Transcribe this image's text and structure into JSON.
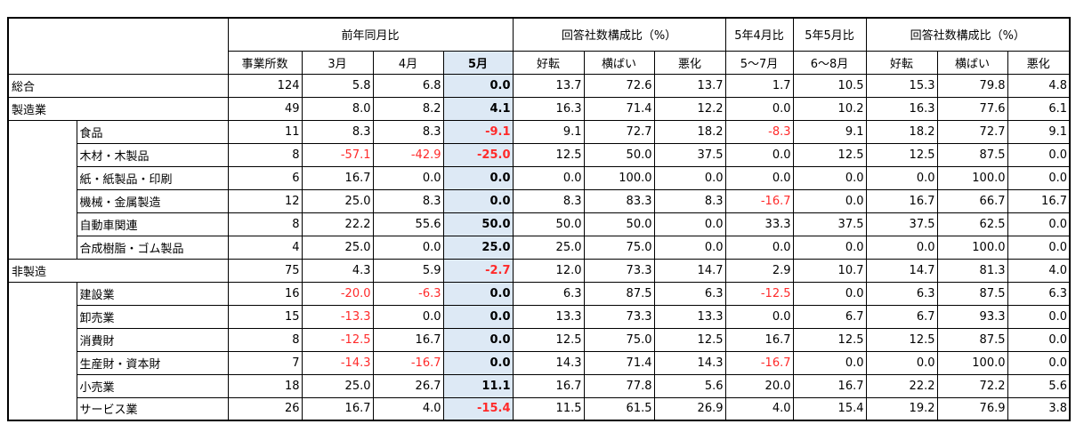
{
  "header": {
    "group_yoy": "前年同月比",
    "group_share1": "回答社数構成比（%）",
    "col_apr": "5年4月比",
    "col_may": "5年5月比",
    "group_share2": "回答社数構成比（%）",
    "sub": [
      "事業所数",
      "3月",
      "4月",
      "5月",
      "好転",
      "横ばい",
      "悪化",
      "5～7月",
      "6～8月",
      "好転",
      "横ばい",
      "悪化"
    ]
  },
  "rows": [
    {
      "cat": "総合",
      "sub": "",
      "v": [
        "124",
        "5.8",
        "6.8",
        "0.0",
        "13.7",
        "72.6",
        "13.7",
        "1.7",
        "10.5",
        "15.3",
        "79.8",
        "4.8"
      ]
    },
    {
      "cat": "製造業",
      "sub": "",
      "v": [
        "49",
        "8.0",
        "8.2",
        "4.1",
        "16.3",
        "71.4",
        "12.2",
        "0.0",
        "10.2",
        "16.3",
        "77.6",
        "6.1"
      ]
    },
    {
      "cat": "",
      "sub": "食品",
      "v": [
        "11",
        "8.3",
        "8.3",
        "-9.1",
        "9.1",
        "72.7",
        "18.2",
        "-8.3",
        "9.1",
        "18.2",
        "72.7",
        "9.1"
      ]
    },
    {
      "cat": "",
      "sub": "木材・木製品",
      "v": [
        "8",
        "-57.1",
        "-42.9",
        "-25.0",
        "12.5",
        "50.0",
        "37.5",
        "0.0",
        "12.5",
        "12.5",
        "87.5",
        "0.0"
      ]
    },
    {
      "cat": "",
      "sub": "紙・紙製品・印刷",
      "v": [
        "6",
        "16.7",
        "0.0",
        "0.0",
        "0.0",
        "100.0",
        "0.0",
        "0.0",
        "0.0",
        "0.0",
        "100.0",
        "0.0"
      ]
    },
    {
      "cat": "",
      "sub": "機械・金属製造",
      "v": [
        "12",
        "25.0",
        "8.3",
        "0.0",
        "8.3",
        "83.3",
        "8.3",
        "-16.7",
        "0.0",
        "16.7",
        "66.7",
        "16.7"
      ]
    },
    {
      "cat": "",
      "sub": "自動車関連",
      "v": [
        "8",
        "22.2",
        "55.6",
        "50.0",
        "50.0",
        "50.0",
        "0.0",
        "33.3",
        "37.5",
        "37.5",
        "62.5",
        "0.0"
      ]
    },
    {
      "cat": "",
      "sub": "合成樹脂・ゴム製品",
      "v": [
        "4",
        "25.0",
        "0.0",
        "25.0",
        "25.0",
        "75.0",
        "0.0",
        "0.0",
        "0.0",
        "0.0",
        "100.0",
        "0.0"
      ]
    },
    {
      "cat": "非製造",
      "sub": "",
      "v": [
        "75",
        "4.3",
        "5.9",
        "-2.7",
        "12.0",
        "73.3",
        "14.7",
        "2.9",
        "10.7",
        "14.7",
        "81.3",
        "4.0"
      ]
    },
    {
      "cat": "",
      "sub": "建設業",
      "v": [
        "16",
        "-20.0",
        "-6.3",
        "0.0",
        "6.3",
        "87.5",
        "6.3",
        "-12.5",
        "0.0",
        "6.3",
        "87.5",
        "6.3"
      ]
    },
    {
      "cat": "",
      "sub": "卸売業",
      "v": [
        "15",
        "-13.3",
        "0.0",
        "0.0",
        "13.3",
        "73.3",
        "13.3",
        "0.0",
        "6.7",
        "6.7",
        "93.3",
        "0.0"
      ]
    },
    {
      "cat": "",
      "sub": "消費財",
      "v": [
        "8",
        "-12.5",
        "16.7",
        "0.0",
        "12.5",
        "75.0",
        "12.5",
        "16.7",
        "12.5",
        "12.5",
        "87.5",
        "0.0"
      ]
    },
    {
      "cat": "",
      "sub": "生産財・資本財",
      "v": [
        "7",
        "-14.3",
        "-16.7",
        "0.0",
        "14.3",
        "71.4",
        "14.3",
        "-16.7",
        "0.0",
        "0.0",
        "100.0",
        "0.0"
      ]
    },
    {
      "cat": "",
      "sub": "小売業",
      "v": [
        "18",
        "25.0",
        "26.7",
        "11.1",
        "16.7",
        "77.8",
        "5.6",
        "20.0",
        "16.7",
        "22.2",
        "72.2",
        "5.6"
      ]
    },
    {
      "cat": "",
      "sub": "サービス業",
      "v": [
        "26",
        "16.7",
        "4.0",
        "-15.4",
        "11.5",
        "61.5",
        "26.9",
        "4.0",
        "15.4",
        "19.2",
        "76.9",
        "3.8"
      ]
    }
  ]
}
